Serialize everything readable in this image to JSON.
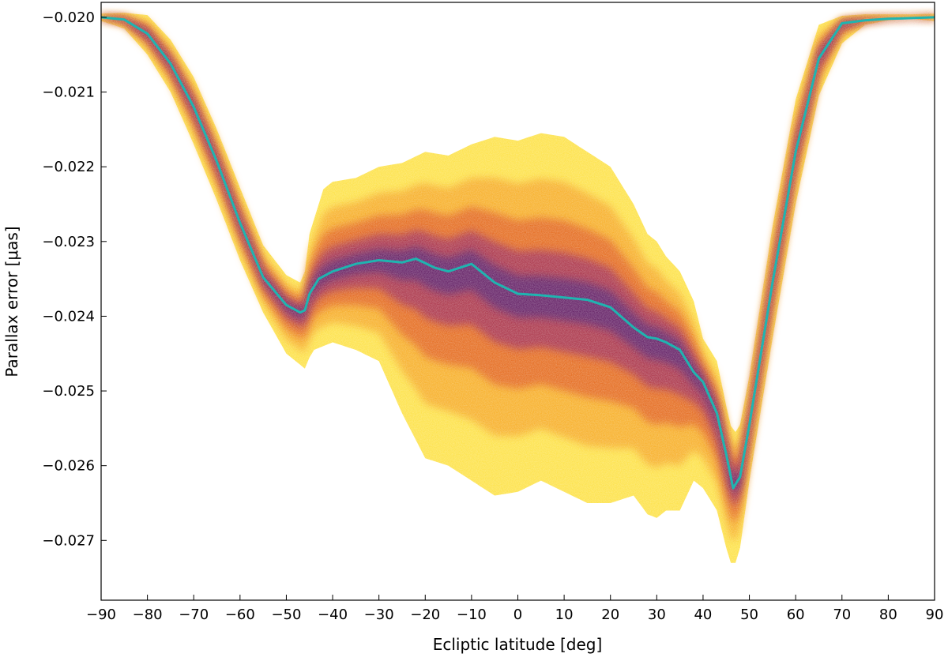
{
  "chart_data": {
    "type": "heatmap",
    "title": "",
    "xlabel": "Ecliptic latitude [deg]",
    "ylabel": "Parallax error [μas]",
    "xlim": [
      -90,
      90
    ],
    "ylim": [
      -0.0278,
      -0.0198
    ],
    "grid": false,
    "legend": "none",
    "x_ticks": [
      -90,
      -80,
      -70,
      -60,
      -50,
      -40,
      -30,
      -20,
      -10,
      0,
      10,
      20,
      30,
      40,
      50,
      60,
      70,
      80,
      90
    ],
    "x_tick_labels": [
      "−90",
      "−80",
      "−70",
      "−60",
      "−50",
      "−40",
      "−30",
      "−20",
      "−10",
      "0",
      "10",
      "20",
      "30",
      "40",
      "50",
      "60",
      "70",
      "80",
      "90"
    ],
    "y_ticks": [
      -0.02,
      -0.021,
      -0.022,
      -0.023,
      -0.024,
      -0.025,
      -0.026,
      -0.027
    ],
    "y_tick_labels": [
      "−0.020",
      "−0.021",
      "−0.022",
      "−0.023",
      "−0.024",
      "−0.025",
      "−0.026",
      "−0.027"
    ],
    "colormap": [
      "#fde24a",
      "#f6a723",
      "#e2611e",
      "#a22e53",
      "#5a1c6c"
    ],
    "median_line_color": "#1fb4b0",
    "median_line": {
      "x": [
        -90,
        -85,
        -80,
        -75,
        -70,
        -65,
        -60,
        -55,
        -50,
        -47,
        -46,
        -45,
        -43,
        -40,
        -35,
        -30,
        -25,
        -22,
        -18,
        -15,
        -10,
        -5,
        0,
        5,
        10,
        15,
        20,
        25,
        28,
        30,
        32,
        35,
        38,
        40,
        43,
        45,
        46.5,
        48,
        50,
        55,
        60,
        65,
        70,
        75,
        80,
        85,
        90
      ],
      "y": [
        -0.02,
        -0.02003,
        -0.02022,
        -0.02062,
        -0.0212,
        -0.02193,
        -0.02275,
        -0.02348,
        -0.02385,
        -0.02395,
        -0.02392,
        -0.0237,
        -0.0235,
        -0.0234,
        -0.0233,
        -0.02325,
        -0.02328,
        -0.02323,
        -0.02335,
        -0.0234,
        -0.0233,
        -0.02355,
        -0.0237,
        -0.02372,
        -0.02375,
        -0.02378,
        -0.02388,
        -0.02415,
        -0.02428,
        -0.0243,
        -0.02435,
        -0.02445,
        -0.02475,
        -0.02488,
        -0.0253,
        -0.02585,
        -0.0263,
        -0.02615,
        -0.02545,
        -0.02355,
        -0.0218,
        -0.02055,
        -0.02008,
        -0.02004,
        -0.02002,
        -0.02001,
        -0.02
      ]
    },
    "density_band": {
      "x": [
        -90,
        -85,
        -80,
        -75,
        -70,
        -65,
        -60,
        -55,
        -50,
        -47,
        -46,
        -45,
        -44,
        -42,
        -40,
        -35,
        -30,
        -25,
        -20,
        -15,
        -10,
        -5,
        0,
        5,
        10,
        15,
        20,
        25,
        28,
        30,
        32,
        35,
        38,
        40,
        43,
        45,
        46.5,
        48,
        50,
        55,
        60,
        65,
        70,
        75,
        80,
        85,
        90
      ],
      "y_upper": [
        -0.01995,
        -0.01994,
        -0.01997,
        -0.0203,
        -0.0208,
        -0.0215,
        -0.02228,
        -0.02305,
        -0.02345,
        -0.02355,
        -0.0234,
        -0.0229,
        -0.0227,
        -0.0223,
        -0.0222,
        -0.02215,
        -0.022,
        -0.02195,
        -0.0218,
        -0.02185,
        -0.0217,
        -0.0216,
        -0.02165,
        -0.02155,
        -0.0216,
        -0.0218,
        -0.022,
        -0.0225,
        -0.0229,
        -0.023,
        -0.0232,
        -0.0234,
        -0.0238,
        -0.0243,
        -0.0246,
        -0.0252,
        -0.0256,
        -0.02545,
        -0.0248,
        -0.0228,
        -0.0211,
        -0.0201,
        -0.01998,
        -0.01996,
        -0.01996,
        -0.01996,
        -0.01995
      ],
      "y_lower": [
        -0.02005,
        -0.02015,
        -0.0205,
        -0.021,
        -0.0217,
        -0.02245,
        -0.02325,
        -0.02395,
        -0.0245,
        -0.02465,
        -0.0247,
        -0.02455,
        -0.02445,
        -0.0244,
        -0.02435,
        -0.02445,
        -0.0246,
        -0.0253,
        -0.0259,
        -0.026,
        -0.0262,
        -0.0264,
        -0.02635,
        -0.0262,
        -0.02635,
        -0.0265,
        -0.0265,
        -0.0264,
        -0.02665,
        -0.0267,
        -0.0266,
        -0.0266,
        -0.0262,
        -0.0263,
        -0.0266,
        -0.0271,
        -0.0274,
        -0.0271,
        -0.0262,
        -0.0243,
        -0.0225,
        -0.02105,
        -0.02035,
        -0.0201,
        -0.02004,
        -0.02002,
        -0.02005
      ]
    }
  }
}
